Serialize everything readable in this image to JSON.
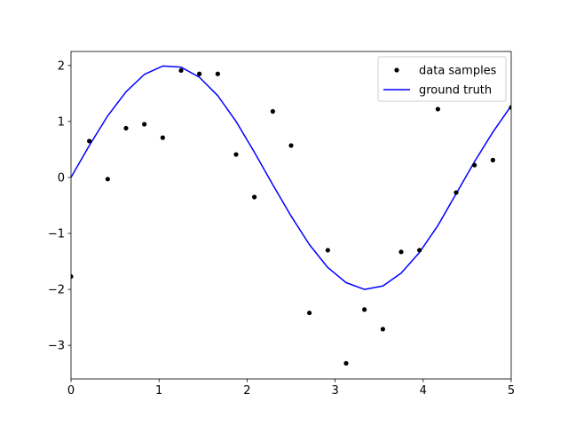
{
  "chart_data": {
    "type": "line",
    "title": "",
    "xlabel": "",
    "ylabel": "",
    "xlim": [
      0,
      5
    ],
    "ylim": [
      -3.6,
      2.25
    ],
    "grid": false,
    "legend_position": "top-right",
    "x_ticks": [
      0,
      1,
      2,
      3,
      4,
      5
    ],
    "x_tick_labels": [
      "0",
      "1",
      "2",
      "3",
      "4",
      "5"
    ],
    "y_ticks": [
      -3,
      -2,
      -1,
      0,
      1,
      2
    ],
    "y_tick_labels": [
      "−3",
      "−2",
      "−1",
      "0",
      "1",
      "2"
    ],
    "series": [
      {
        "name": "data samples",
        "kind": "scatter",
        "color": "#000000",
        "x": [
          0.0,
          0.208,
          0.417,
          0.625,
          0.833,
          1.042,
          1.25,
          1.458,
          1.667,
          1.875,
          2.083,
          2.292,
          2.5,
          2.708,
          2.917,
          3.125,
          3.333,
          3.542,
          3.75,
          3.958,
          4.167,
          4.375,
          4.583,
          4.792,
          5.0
        ],
        "y": [
          -1.77,
          0.65,
          -0.03,
          0.88,
          0.95,
          0.71,
          1.91,
          1.85,
          1.85,
          0.41,
          -0.35,
          1.18,
          0.57,
          -2.42,
          -1.3,
          -3.32,
          -2.36,
          -2.71,
          -1.33,
          -1.3,
          1.22,
          -0.27,
          0.22,
          0.31,
          1.25
        ]
      },
      {
        "name": "ground truth",
        "kind": "line",
        "color": "#0000ff",
        "x": [
          0.0,
          0.208,
          0.417,
          0.625,
          0.833,
          1.042,
          1.25,
          1.458,
          1.667,
          1.875,
          2.083,
          2.292,
          2.5,
          2.708,
          2.917,
          3.125,
          3.333,
          3.542,
          3.75,
          3.958,
          4.167,
          4.375,
          4.583,
          4.792,
          5.0
        ],
        "y": [
          0.0,
          0.57,
          1.1,
          1.53,
          1.84,
          1.99,
          1.97,
          1.79,
          1.46,
          1.0,
          0.45,
          -0.13,
          -0.69,
          -1.2,
          -1.61,
          -1.88,
          -2.0,
          -1.94,
          -1.71,
          -1.34,
          -0.86,
          -0.29,
          0.28,
          0.81,
          1.28
        ]
      }
    ]
  }
}
